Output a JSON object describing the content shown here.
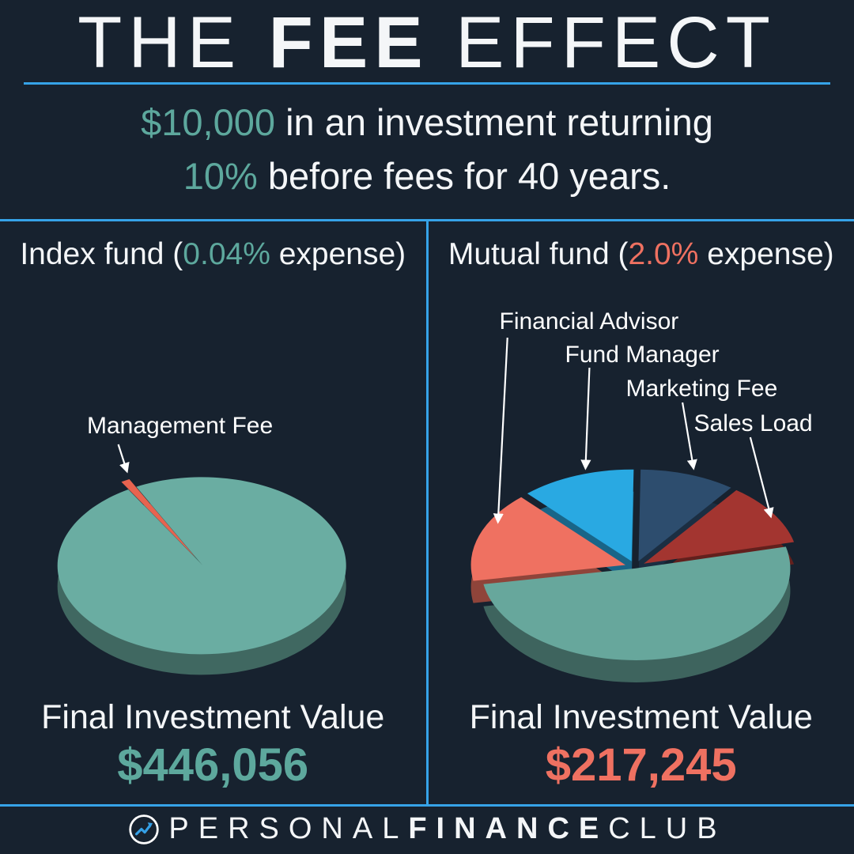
{
  "title": {
    "word1": "THE",
    "word2": "FEE",
    "word3": "EFFECT"
  },
  "subtitle": {
    "amount": "$10,000",
    "line1_rest": " in an investment returning",
    "rate": "10%",
    "line2_rest": " before fees for 40 years."
  },
  "panels": {
    "left": {
      "heading_pre": "Index fund (",
      "heading_value": "0.04%",
      "heading_post": " expense)"
    },
    "right": {
      "heading_pre": "Mutual fund (",
      "heading_value": "2.0%",
      "heading_post": " expense)"
    }
  },
  "footer": {
    "brand_1": "PERSONAL",
    "brand_2": "FINANCE",
    "brand_3": "CLUB"
  },
  "colors": {
    "background": "#17222f",
    "divider": "#36a3e8",
    "teal_accent": "#5da89d",
    "salmon_accent": "#ef7161",
    "arrow": "#ffffff"
  },
  "chart_data": [
    {
      "type": "pie",
      "title": "Index fund (0.04% expense)",
      "final_label": "Final Investment Value",
      "final_value": "$446,056",
      "legend_position": "callout-arrows",
      "slices": [
        {
          "label": "Management Fee",
          "value": 1,
          "color": "#e8634f"
        },
        {
          "label": "",
          "value": 99,
          "color": "#6aada2"
        }
      ]
    },
    {
      "type": "pie",
      "title": "Mutual fund (2.0% expense)",
      "final_label": "Final Investment Value",
      "final_value": "$217,245",
      "legend_position": "callout-arrows",
      "slices": [
        {
          "label": "Financial Advisor",
          "value": 16,
          "color": "#ef7161"
        },
        {
          "label": "Fund Manager",
          "value": 12,
          "color": "#29a9e2"
        },
        {
          "label": "Marketing Fee",
          "value": 10,
          "color": "#2d4d6e"
        },
        {
          "label": "Sales Load",
          "value": 11,
          "color": "#a33530"
        },
        {
          "label": "",
          "value": 51,
          "color": "#67a79c"
        }
      ]
    }
  ]
}
